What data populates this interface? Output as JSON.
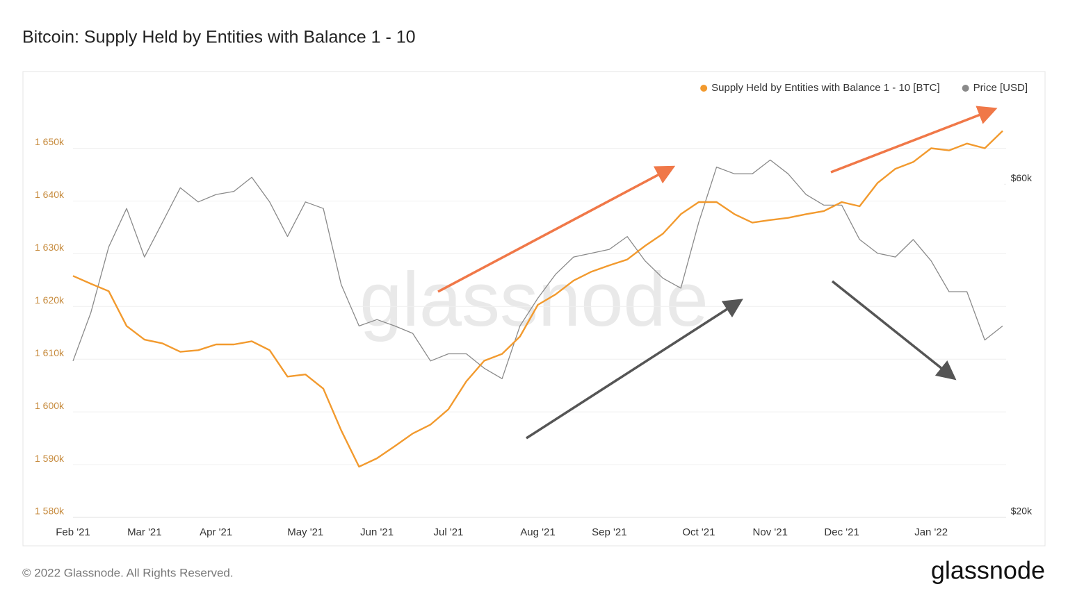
{
  "chart_data": {
    "type": "line",
    "title": "Bitcoin: Supply Held by Entities with Balance 1 - 10",
    "categories": [
      "Feb '21",
      null,
      null,
      null,
      "Mar '21",
      null,
      null,
      null,
      "Apr '21",
      null,
      null,
      null,
      null,
      "May '21",
      null,
      null,
      null,
      "Jun '21",
      null,
      null,
      null,
      "Jul '21",
      null,
      null,
      null,
      null,
      "Aug '21",
      null,
      null,
      null,
      "Sep '21",
      null,
      null,
      null,
      null,
      "Oct '21",
      null,
      null,
      null,
      "Nov '21",
      null,
      null,
      null,
      "Dec '21",
      null,
      null,
      null,
      null,
      "Jan '22",
      null,
      null,
      null,
      null
    ],
    "series": [
      {
        "name": "Supply Held by Entities with Balance 1 - 10 [BTC]",
        "color": "#f29a2e",
        "values": [
          1625800,
          1624300,
          1622900,
          1616300,
          1613700,
          1613000,
          1611400,
          1611700,
          1612800,
          1612800,
          1613400,
          1611700,
          1606700,
          1607100,
          1604400,
          1596500,
          1589600,
          1591200,
          1593500,
          1595900,
          1597600,
          1600500,
          1605800,
          1609700,
          1611000,
          1614300,
          1620300,
          1622300,
          1624900,
          1626600,
          1627800,
          1628900,
          1631500,
          1633800,
          1637500,
          1639800,
          1639800,
          1637500,
          1635900,
          1636400,
          1636800,
          1637500,
          1638100,
          1639800,
          1639000,
          1643400,
          1646100,
          1647400,
          1650000,
          1649600,
          1650900,
          1650000,
          1653300
        ]
      },
      {
        "name": "Price [USD]",
        "color": "#8a8a8a",
        "axis": "y2",
        "values": [
          33500,
          39300,
          48800,
          55400,
          47200,
          52900,
          59300,
          56600,
          58000,
          58600,
          61400,
          56600,
          50500,
          56600,
          55400,
          43100,
          37600,
          38400,
          37600,
          36700,
          33500,
          34300,
          34300,
          32700,
          31600,
          37600,
          41200,
          44600,
          47200,
          47800,
          48400,
          50500,
          46600,
          44000,
          42600,
          52900,
          63500,
          62100,
          62100,
          65000,
          62100,
          58000,
          56000,
          56000,
          50000,
          47800,
          47200,
          50000,
          46600,
          42100,
          42100,
          35900,
          37600
        ]
      }
    ],
    "ylim": [
      1580000,
      1661000
    ],
    "yticks": [
      {
        "value": 1580000,
        "label": "1 580k"
      },
      {
        "value": 1590000,
        "label": "1 590k"
      },
      {
        "value": 1600000,
        "label": "1 600k"
      },
      {
        "value": 1610000,
        "label": "1 610k"
      },
      {
        "value": 1620000,
        "label": "1 620k"
      },
      {
        "value": 1630000,
        "label": "1 630k"
      },
      {
        "value": 1640000,
        "label": "1 640k"
      },
      {
        "value": 1650000,
        "label": "1 650k"
      }
    ],
    "y2lim": [
      20000,
      81800
    ],
    "y2ticks": [
      {
        "value": 20000,
        "label": "$20k"
      },
      {
        "value": 60000,
        "label": "$60k"
      }
    ],
    "y2scale": "log",
    "grid": true,
    "legend": "top-right"
  },
  "watermark": "glassnode",
  "footer": {
    "copyright": "© 2022 Glassnode. All Rights Reserved.",
    "logo": "glassnode"
  }
}
